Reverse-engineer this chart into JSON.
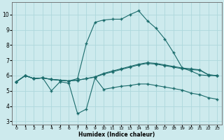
{
  "xlabel": "Humidex (Indice chaleur)",
  "background_color": "#cdeaed",
  "grid_color": "#add8dc",
  "line_color": "#1a6b6b",
  "xlim": [
    -0.5,
    23.5
  ],
  "ylim": [
    2.8,
    10.8
  ],
  "xticks": [
    0,
    1,
    2,
    3,
    4,
    5,
    6,
    7,
    8,
    9,
    10,
    11,
    12,
    13,
    14,
    15,
    16,
    17,
    18,
    19,
    20,
    21,
    22,
    23
  ],
  "yticks": [
    3,
    4,
    5,
    6,
    7,
    8,
    9,
    10
  ],
  "line1_x": [
    0,
    1,
    2,
    3,
    4,
    5,
    6,
    7,
    8,
    9,
    10,
    11,
    12,
    13,
    14,
    15,
    16,
    17,
    18,
    19,
    20,
    21,
    22,
    23
  ],
  "line1_y": [
    5.6,
    6.0,
    5.8,
    5.85,
    5.75,
    5.7,
    5.65,
    5.8,
    8.1,
    9.5,
    9.65,
    9.7,
    9.7,
    10.0,
    10.25,
    9.6,
    9.1,
    8.4,
    7.5,
    6.5,
    6.3,
    6.05,
    6.0,
    6.0
  ],
  "line2_x": [
    0,
    1,
    2,
    3,
    4,
    5,
    6,
    7,
    8,
    9,
    10,
    11,
    12,
    13,
    14,
    15,
    16,
    17,
    18,
    19,
    20,
    21,
    22,
    23
  ],
  "line2_y": [
    5.6,
    6.0,
    5.8,
    5.85,
    5.0,
    5.6,
    5.5,
    3.5,
    3.8,
    5.85,
    5.1,
    5.2,
    5.3,
    5.35,
    5.45,
    5.45,
    5.35,
    5.25,
    5.15,
    5.05,
    4.85,
    4.75,
    4.55,
    4.45
  ],
  "line3_x": [
    0,
    1,
    2,
    3,
    4,
    5,
    6,
    7,
    8,
    9,
    10,
    11,
    12,
    13,
    14,
    15,
    16,
    17,
    18,
    19,
    20,
    21,
    22,
    23
  ],
  "line3_y": [
    5.6,
    6.0,
    5.8,
    5.85,
    5.75,
    5.7,
    5.65,
    5.7,
    5.8,
    5.9,
    6.1,
    6.25,
    6.4,
    6.55,
    6.7,
    6.8,
    6.75,
    6.65,
    6.55,
    6.45,
    6.4,
    6.35,
    6.05,
    6.0
  ],
  "line4_x": [
    0,
    1,
    2,
    3,
    4,
    5,
    6,
    7,
    8,
    9,
    10,
    11,
    12,
    13,
    14,
    15,
    16,
    17,
    18,
    19,
    20,
    21,
    22,
    23
  ],
  "line4_y": [
    5.6,
    6.0,
    5.8,
    5.85,
    5.75,
    5.7,
    5.65,
    5.7,
    5.8,
    5.92,
    6.15,
    6.3,
    6.45,
    6.6,
    6.75,
    6.85,
    6.8,
    6.7,
    6.6,
    6.5,
    6.44,
    6.38,
    6.05,
    6.0
  ]
}
